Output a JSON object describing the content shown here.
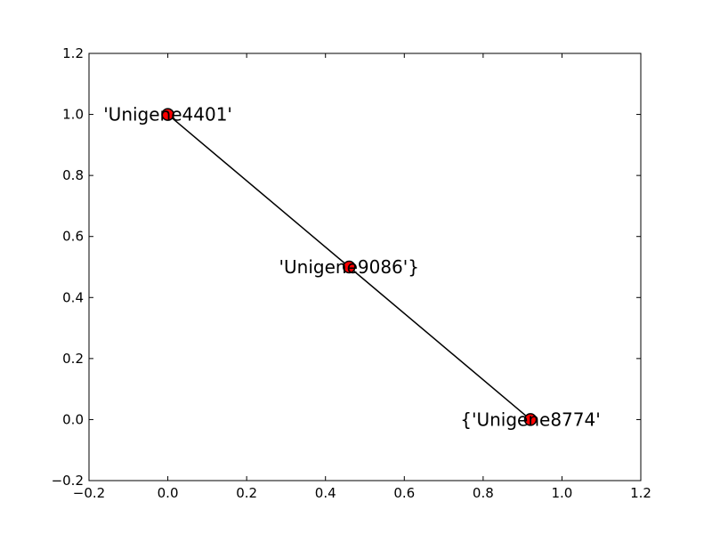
{
  "chart_data": {
    "type": "scatter",
    "title": "",
    "xlabel": "",
    "ylabel": "",
    "xlim": [
      -0.2,
      1.2
    ],
    "ylim": [
      -0.2,
      1.2
    ],
    "xticks": [
      "−0.2",
      "0.0",
      "0.2",
      "0.4",
      "0.6",
      "0.8",
      "1.0",
      "1.2"
    ],
    "yticks": [
      "−0.2",
      "0.0",
      "0.2",
      "0.4",
      "0.6",
      "0.8",
      "1.0",
      "1.2"
    ],
    "grid": false,
    "points": [
      {
        "x": 0.0,
        "y": 1.0,
        "label": "'Unigene4401'"
      },
      {
        "x": 0.46,
        "y": 0.5,
        "label": "'Unigene9086'}"
      },
      {
        "x": 0.92,
        "y": 0.0,
        "label": "{'Unigene8774'"
      }
    ],
    "edges": [
      [
        0,
        1
      ],
      [
        1,
        2
      ]
    ],
    "colors": {
      "node_fill": "#ff0000",
      "node_stroke": "#000000",
      "edge": "#000000"
    }
  }
}
